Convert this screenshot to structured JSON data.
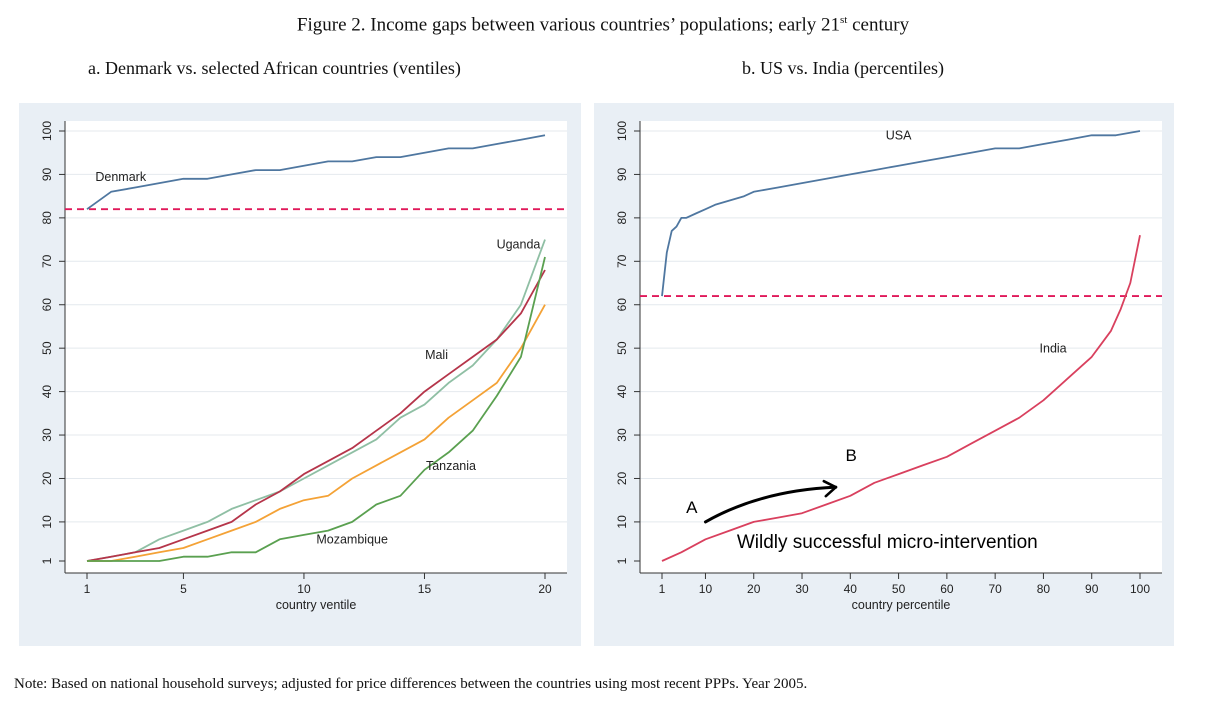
{
  "figure": {
    "title_main": "Figure 2. Income gaps between various countries’ populations; early 21",
    "title_sup": "st",
    "title_end": " century",
    "note": "Note: Based on national household surveys; adjusted for price differences between the countries using most recent PPPs. Year 2005."
  },
  "chart_data": [
    {
      "type": "line",
      "title": "a. Denmark vs.  selected African countries    (ventiles)",
      "xlabel": "country ventile",
      "ylabel": "",
      "xlim": [
        1,
        20
      ],
      "ylim": [
        1,
        100
      ],
      "x_ticks": [
        1,
        5,
        10,
        15,
        20
      ],
      "y_ticks": [
        1,
        10,
        20,
        30,
        40,
        50,
        60,
        70,
        80,
        90,
        100
      ],
      "x": [
        1,
        2,
        3,
        4,
        5,
        6,
        7,
        8,
        9,
        10,
        11,
        12,
        13,
        14,
        15,
        16,
        17,
        18,
        19,
        20
      ],
      "reference_line": {
        "y": 82,
        "style": "dashed",
        "color": "#e0195a"
      },
      "series": [
        {
          "name": "Denmark",
          "color": "#4f77a0",
          "values": [
            82,
            86,
            87,
            88,
            89,
            89,
            90,
            91,
            91,
            92,
            93,
            93,
            94,
            94,
            95,
            96,
            96,
            97,
            98,
            99
          ]
        },
        {
          "name": "Uganda",
          "color": "#8fbfa4",
          "values": [
            1,
            2,
            3,
            6,
            8,
            10,
            13,
            15,
            17,
            20,
            23,
            26,
            29,
            34,
            37,
            42,
            46,
            52,
            60,
            75
          ]
        },
        {
          "name": "Mali",
          "color": "#b5354a",
          "values": [
            1,
            2,
            3,
            4,
            6,
            8,
            10,
            14,
            17,
            21,
            24,
            27,
            31,
            35,
            40,
            44,
            48,
            52,
            58,
            68
          ]
        },
        {
          "name": "Tanzania",
          "color": "#f4a236",
          "values": [
            1,
            1,
            2,
            3,
            4,
            6,
            8,
            10,
            13,
            15,
            16,
            20,
            23,
            26,
            29,
            34,
            38,
            42,
            50,
            60
          ]
        },
        {
          "name": "Mozambique",
          "color": "#5aa050",
          "values": [
            1,
            1,
            1,
            1,
            2,
            2,
            3,
            3,
            6,
            7,
            8,
            10,
            14,
            16,
            22,
            26,
            31,
            39,
            48,
            71
          ]
        }
      ],
      "labels": [
        {
          "series": "Denmark",
          "text": "Denmark",
          "x": 2.4,
          "y": 88.5
        },
        {
          "series": "Uganda",
          "text": "Uganda",
          "x": 18.9,
          "y": 73
        },
        {
          "series": "Mali",
          "text": "Mali",
          "x": 15.5,
          "y": 47.5
        },
        {
          "series": "Tanzania",
          "text": "Tanzania",
          "x": 16.1,
          "y": 22
        },
        {
          "series": "Mozambique",
          "text": "Mozambique",
          "x": 12.0,
          "y": 5
        }
      ]
    },
    {
      "type": "line",
      "title": "b. US vs. India (percentiles)",
      "xlabel": "country percentile",
      "ylabel": "",
      "xlim": [
        1,
        100
      ],
      "ylim": [
        1,
        100
      ],
      "x_ticks": [
        1,
        10,
        20,
        30,
        40,
        50,
        60,
        70,
        80,
        90,
        100
      ],
      "y_ticks": [
        1,
        10,
        20,
        30,
        40,
        50,
        60,
        70,
        80,
        90,
        100
      ],
      "reference_line": {
        "y": 62,
        "style": "dashed",
        "color": "#e0195a"
      },
      "series": [
        {
          "name": "USA",
          "color": "#4f77a0",
          "x": [
            1,
            2,
            3,
            4,
            5,
            6,
            8,
            10,
            12,
            15,
            18,
            20,
            25,
            30,
            35,
            40,
            45,
            50,
            55,
            60,
            65,
            70,
            75,
            80,
            85,
            90,
            95,
            100
          ],
          "values": [
            62,
            72,
            77,
            78,
            80,
            80,
            81,
            82,
            83,
            84,
            85,
            86,
            87,
            88,
            89,
            90,
            91,
            92,
            93,
            94,
            95,
            96,
            96,
            97,
            98,
            99,
            99,
            100
          ]
        },
        {
          "name": "India",
          "color": "#d9405e",
          "x": [
            1,
            5,
            10,
            15,
            20,
            25,
            30,
            35,
            40,
            45,
            50,
            55,
            60,
            65,
            70,
            75,
            80,
            85,
            90,
            92,
            94,
            96,
            98,
            100
          ],
          "values": [
            1,
            3,
            6,
            8,
            10,
            11,
            12,
            14,
            16,
            19,
            21,
            23,
            25,
            28,
            31,
            34,
            38,
            43,
            48,
            51,
            54,
            59,
            65,
            76
          ]
        }
      ],
      "labels": [
        {
          "series": "USA",
          "text": "USA",
          "x": 50,
          "y": 98
        },
        {
          "series": "India",
          "text": "India",
          "x": 82,
          "y": 49
        }
      ],
      "annotations": [
        {
          "text": "A",
          "x": 6,
          "y": 12
        },
        {
          "text": "B",
          "x": 39,
          "y": 24
        },
        {
          "text": "Wildly successful micro-intervention",
          "x": 16.5,
          "y": 4
        }
      ],
      "arrow": {
        "from": [
          10,
          10
        ],
        "to": [
          37,
          18
        ]
      }
    }
  ]
}
